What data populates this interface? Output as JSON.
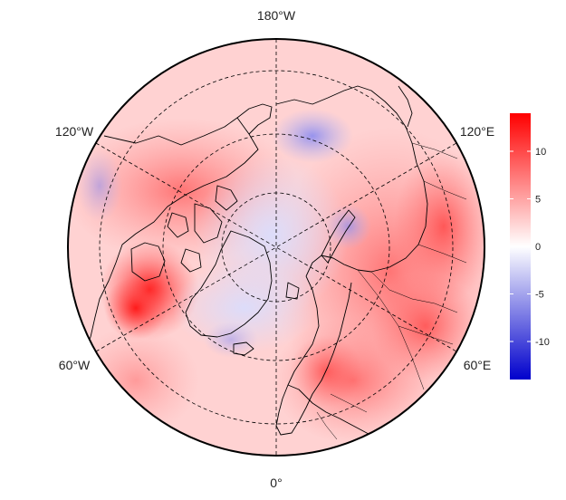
{
  "map": {
    "projection": "north-polar-stereographic",
    "variable_colors": {
      "positive": "#ff0000",
      "zero": "#ffffff",
      "negative": "#0000cc"
    },
    "longitude_labels": [
      {
        "id": "lon-180w",
        "text": "180°W"
      },
      {
        "id": "lon-120w",
        "text": "120°W"
      },
      {
        "id": "lon-120e",
        "text": "120°E"
      },
      {
        "id": "lon-60w",
        "text": "60°W"
      },
      {
        "id": "lon-60e",
        "text": "60°E"
      },
      {
        "id": "lon-0",
        "text": "0°"
      }
    ],
    "graticule": {
      "meridians_deg": [
        0,
        60,
        120,
        180,
        240,
        300
      ],
      "parallels_visible": 3
    }
  },
  "colorbar": {
    "min": -14,
    "max": 14,
    "ticks": [
      "10",
      "5",
      "0",
      "-5",
      "-10"
    ],
    "tick_values": [
      10,
      5,
      0,
      -5,
      -10
    ]
  }
}
